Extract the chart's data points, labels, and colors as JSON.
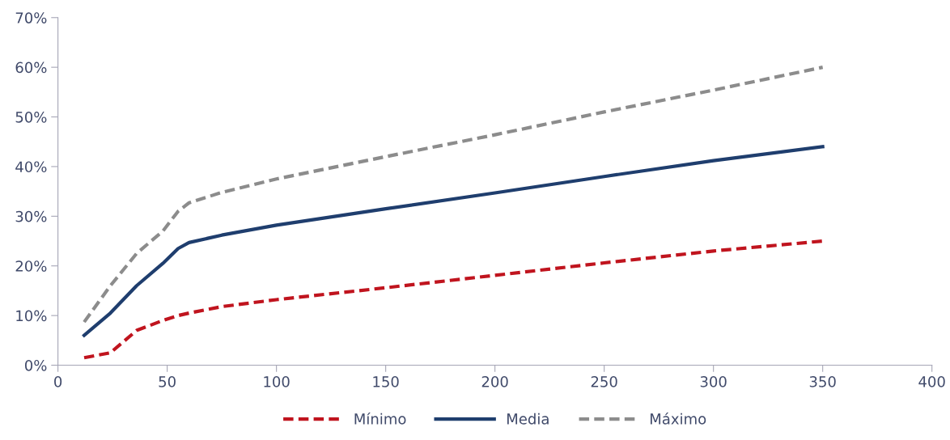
{
  "chart_data": {
    "type": "line",
    "x": [
      12,
      24,
      36,
      48,
      55,
      60,
      75,
      100,
      150,
      200,
      250,
      300,
      350
    ],
    "series": [
      {
        "name": "Mínimo",
        "color": "#c0141e",
        "line_style": "dashed",
        "values": [
          1.5,
          2.5,
          7,
          9,
          10,
          10.5,
          11.8,
          13.2,
          15.6,
          18.1,
          20.6,
          23,
          25
        ]
      },
      {
        "name": "Media",
        "color": "#1f3e6e",
        "line_style": "solid",
        "values": [
          6,
          10.5,
          16,
          20.5,
          23.5,
          24.7,
          26.2,
          28.2,
          31.5,
          34.7,
          38,
          41.2,
          44
        ]
      },
      {
        "name": "Máximo",
        "color": "#8c8c8c",
        "line_style": "dashed",
        "values": [
          8.7,
          16,
          22.5,
          27,
          31,
          32.7,
          34.8,
          37.5,
          42,
          46.4,
          51,
          55.4,
          60
        ]
      }
    ],
    "xlim": [
      0,
      400
    ],
    "xticks": [
      0,
      50,
      100,
      150,
      200,
      250,
      300,
      350,
      400
    ],
    "ylim": [
      0,
      70
    ],
    "yticks": [
      {
        "value": 0,
        "label": "0%"
      },
      {
        "value": 10,
        "label": "10%"
      },
      {
        "value": 20,
        "label": "20%"
      },
      {
        "value": 30,
        "label": "30%"
      },
      {
        "value": 40,
        "label": "40%"
      },
      {
        "value": 50,
        "label": "50%"
      },
      {
        "value": 60,
        "label": "60%"
      },
      {
        "value": 70,
        "label": "70%"
      }
    ],
    "grid": false,
    "legend": "bottom",
    "marker": "none"
  }
}
